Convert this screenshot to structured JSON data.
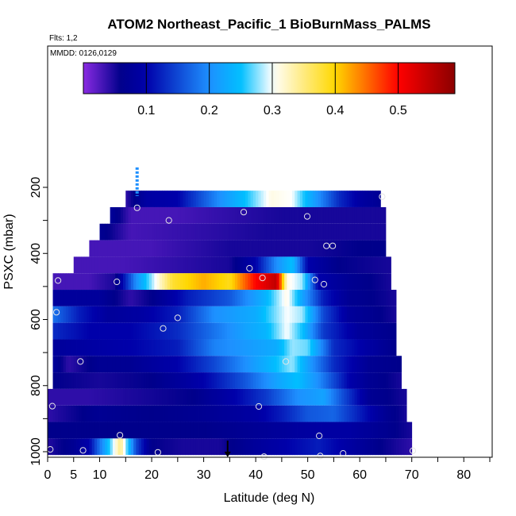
{
  "chart_data": {
    "type": "heatmap",
    "title": "ATOM2 Northeast_Pacific_1 BioBurnMass_PALMS",
    "flights_label": "Flts: 1,2",
    "dates_label": "MMDD: 0126,0129",
    "xlabel": "Latitude (deg N)",
    "ylabel": "PSXC (mbar)",
    "xlim": [
      0,
      85
    ],
    "ylim": [
      1000,
      100
    ],
    "x_ticks": [
      0,
      5,
      10,
      20,
      30,
      40,
      50,
      60,
      70,
      80
    ],
    "y_ticks": [
      200,
      400,
      600,
      800,
      1000
    ],
    "colorbar": {
      "min": 0.0,
      "max": 0.59,
      "ticks": [
        0.1,
        0.2,
        0.3,
        0.4,
        0.5
      ],
      "tick_labels": [
        "0.1",
        "0.2",
        "0.3",
        "0.4",
        "0.5"
      ],
      "colors": [
        "#8a2be2",
        "#00008b",
        "#1e90ff",
        "#00bfff",
        "#ffffff",
        "#ffd700",
        "#ff0000",
        "#8b0000"
      ]
    },
    "bands": [
      {
        "p_top": 210,
        "p_bot": 260,
        "lat_min": 15,
        "lat_max": 64,
        "values": [
          [
            15,
            0.04
          ],
          [
            19,
            0.09
          ],
          [
            25,
            0.1
          ],
          [
            33,
            0.2
          ],
          [
            38,
            0.25
          ],
          [
            43,
            0.31
          ],
          [
            47,
            0.3
          ],
          [
            51,
            0.22
          ],
          [
            56,
            0.13
          ],
          [
            60,
            0.09
          ],
          [
            64,
            0.07
          ]
        ]
      },
      {
        "p_top": 260,
        "p_bot": 310,
        "lat_min": 12,
        "lat_max": 65,
        "values": [
          [
            12,
            0.08
          ],
          [
            16,
            0.03
          ],
          [
            25,
            0.03
          ],
          [
            35,
            0.04
          ],
          [
            45,
            0.05
          ],
          [
            55,
            0.05
          ],
          [
            62,
            0.05
          ],
          [
            65,
            0.05
          ]
        ]
      },
      {
        "p_top": 310,
        "p_bot": 360,
        "lat_min": 10,
        "lat_max": 65,
        "values": [
          [
            10,
            0.07
          ],
          [
            16,
            0.03
          ],
          [
            30,
            0.04
          ],
          [
            42,
            0.05
          ],
          [
            55,
            0.05
          ],
          [
            65,
            0.05
          ]
        ]
      },
      {
        "p_top": 360,
        "p_bot": 410,
        "lat_min": 8,
        "lat_max": 65,
        "values": [
          [
            8,
            0.03
          ],
          [
            20,
            0.03
          ],
          [
            35,
            0.05
          ],
          [
            50,
            0.05
          ],
          [
            60,
            0.06
          ],
          [
            65,
            0.06
          ]
        ]
      },
      {
        "p_top": 410,
        "p_bot": 460,
        "lat_min": 5,
        "lat_max": 66,
        "values": [
          [
            5,
            0.03
          ],
          [
            15,
            0.03
          ],
          [
            25,
            0.04
          ],
          [
            35,
            0.05
          ],
          [
            40,
            0.1
          ],
          [
            44,
            0.2
          ],
          [
            47,
            0.25
          ],
          [
            50,
            0.1
          ],
          [
            56,
            0.06
          ],
          [
            66,
            0.05
          ]
        ]
      },
      {
        "p_top": 460,
        "p_bot": 510,
        "lat_min": 1,
        "lat_max": 66,
        "values": [
          [
            1,
            0.03
          ],
          [
            8,
            0.03
          ],
          [
            13,
            0.05
          ],
          [
            17,
            0.2
          ],
          [
            20,
            0.28
          ],
          [
            24,
            0.38
          ],
          [
            30,
            0.42
          ],
          [
            35,
            0.39
          ],
          [
            40,
            0.5
          ],
          [
            44,
            0.55
          ],
          [
            46,
            0.31
          ],
          [
            49,
            0.28
          ],
          [
            52,
            0.1
          ],
          [
            58,
            0.07
          ],
          [
            66,
            0.05
          ]
        ]
      },
      {
        "p_top": 510,
        "p_bot": 560,
        "lat_min": 1,
        "lat_max": 67,
        "values": [
          [
            1,
            0.08
          ],
          [
            10,
            0.08
          ],
          [
            16,
            0.04
          ],
          [
            20,
            0.06
          ],
          [
            27,
            0.12
          ],
          [
            35,
            0.16
          ],
          [
            42,
            0.24
          ],
          [
            46,
            0.31
          ],
          [
            49,
            0.22
          ],
          [
            53,
            0.12
          ],
          [
            58,
            0.07
          ],
          [
            67,
            0.05
          ]
        ]
      },
      {
        "p_top": 560,
        "p_bot": 610,
        "lat_min": 1,
        "lat_max": 67,
        "values": [
          [
            1,
            0.18
          ],
          [
            6,
            0.12
          ],
          [
            12,
            0.08
          ],
          [
            18,
            0.09
          ],
          [
            25,
            0.12
          ],
          [
            32,
            0.2
          ],
          [
            40,
            0.23
          ],
          [
            46,
            0.3
          ],
          [
            49,
            0.28
          ],
          [
            53,
            0.15
          ],
          [
            58,
            0.08
          ],
          [
            67,
            0.05
          ]
        ]
      },
      {
        "p_top": 610,
        "p_bot": 660,
        "lat_min": 1,
        "lat_max": 67,
        "values": [
          [
            1,
            0.13
          ],
          [
            8,
            0.1
          ],
          [
            16,
            0.1
          ],
          [
            25,
            0.13
          ],
          [
            32,
            0.18
          ],
          [
            38,
            0.22
          ],
          [
            42,
            0.24
          ],
          [
            46,
            0.3
          ],
          [
            49,
            0.25
          ],
          [
            53,
            0.14
          ],
          [
            60,
            0.08
          ],
          [
            67,
            0.06
          ]
        ]
      },
      {
        "p_top": 660,
        "p_bot": 710,
        "lat_min": 1,
        "lat_max": 67,
        "values": [
          [
            1,
            0.08
          ],
          [
            8,
            0.09
          ],
          [
            16,
            0.1
          ],
          [
            25,
            0.12
          ],
          [
            32,
            0.19
          ],
          [
            38,
            0.21
          ],
          [
            44,
            0.23
          ],
          [
            47,
            0.28
          ],
          [
            50,
            0.27
          ],
          [
            55,
            0.13
          ],
          [
            60,
            0.1
          ],
          [
            67,
            0.06
          ]
        ]
      },
      {
        "p_top": 710,
        "p_bot": 760,
        "lat_min": 1,
        "lat_max": 68,
        "values": [
          [
            1,
            0.08
          ],
          [
            4,
            0.04
          ],
          [
            10,
            0.07
          ],
          [
            16,
            0.07
          ],
          [
            25,
            0.1
          ],
          [
            32,
            0.15
          ],
          [
            38,
            0.2
          ],
          [
            44,
            0.25
          ],
          [
            47,
            0.28
          ],
          [
            51,
            0.2
          ],
          [
            55,
            0.13
          ],
          [
            62,
            0.07
          ],
          [
            68,
            0.06
          ]
        ]
      },
      {
        "p_top": 760,
        "p_bot": 810,
        "lat_min": 1,
        "lat_max": 68,
        "values": [
          [
            1,
            0.06
          ],
          [
            10,
            0.05
          ],
          [
            20,
            0.06
          ],
          [
            30,
            0.1
          ],
          [
            38,
            0.16
          ],
          [
            44,
            0.22
          ],
          [
            48,
            0.25
          ],
          [
            52,
            0.2
          ],
          [
            58,
            0.1
          ],
          [
            62,
            0.07
          ],
          [
            68,
            0.05
          ]
        ]
      },
      {
        "p_top": 810,
        "p_bot": 860,
        "lat_min": 0,
        "lat_max": 69,
        "values": [
          [
            0,
            0.04
          ],
          [
            8,
            0.04
          ],
          [
            18,
            0.05
          ],
          [
            28,
            0.06
          ],
          [
            36,
            0.1
          ],
          [
            42,
            0.14
          ],
          [
            48,
            0.2
          ],
          [
            53,
            0.22
          ],
          [
            57,
            0.15
          ],
          [
            62,
            0.07
          ],
          [
            69,
            0.05
          ]
        ]
      },
      {
        "p_top": 860,
        "p_bot": 910,
        "lat_min": 0,
        "lat_max": 69,
        "values": [
          [
            0,
            0.04
          ],
          [
            10,
            0.07
          ],
          [
            20,
            0.06
          ],
          [
            30,
            0.07
          ],
          [
            40,
            0.09
          ],
          [
            45,
            0.12
          ],
          [
            50,
            0.16
          ],
          [
            55,
            0.17
          ],
          [
            60,
            0.12
          ],
          [
            65,
            0.07
          ],
          [
            69,
            0.05
          ]
        ]
      },
      {
        "p_top": 910,
        "p_bot": 960,
        "lat_min": 0,
        "lat_max": 70,
        "values": [
          [
            0,
            0.06
          ],
          [
            10,
            0.06
          ],
          [
            20,
            0.06
          ],
          [
            30,
            0.06
          ],
          [
            38,
            0.07
          ],
          [
            45,
            0.08
          ],
          [
            52,
            0.09
          ],
          [
            58,
            0.09
          ],
          [
            64,
            0.07
          ],
          [
            70,
            0.05
          ]
        ]
      },
      {
        "p_top": 960,
        "p_bot": 1010,
        "lat_min": -1,
        "lat_max": 70,
        "values": [
          [
            -1,
            0.04
          ],
          [
            5,
            0.07
          ],
          [
            8,
            0.1
          ],
          [
            11,
            0.22
          ],
          [
            14,
            0.35
          ],
          [
            17,
            0.15
          ],
          [
            20,
            0.06
          ],
          [
            26,
            0.05
          ],
          [
            33,
            0.05
          ],
          [
            40,
            0.08
          ],
          [
            46,
            0.1
          ],
          [
            52,
            0.12
          ],
          [
            58,
            0.09
          ],
          [
            64,
            0.06
          ],
          [
            70,
            0.04
          ]
        ]
      }
    ],
    "sample_points": [
      {
        "lat": 17.2,
        "p": 262
      },
      {
        "lat": 23.3,
        "p": 300
      },
      {
        "lat": 37.7,
        "p": 275
      },
      {
        "lat": 49.9,
        "p": 288
      },
      {
        "lat": 64.3,
        "p": 228
      },
      {
        "lat": 53.6,
        "p": 377
      },
      {
        "lat": 54.8,
        "p": 377
      },
      {
        "lat": 38.8,
        "p": 445
      },
      {
        "lat": 41.3,
        "p": 474
      },
      {
        "lat": 51.4,
        "p": 480
      },
      {
        "lat": 53.1,
        "p": 493
      },
      {
        "lat": 2.0,
        "p": 482
      },
      {
        "lat": 13.3,
        "p": 486
      },
      {
        "lat": 1.7,
        "p": 578
      },
      {
        "lat": 25.0,
        "p": 595
      },
      {
        "lat": 22.2,
        "p": 627
      },
      {
        "lat": 6.3,
        "p": 727
      },
      {
        "lat": 45.8,
        "p": 727
      },
      {
        "lat": 0.9,
        "p": 862
      },
      {
        "lat": 40.6,
        "p": 863
      },
      {
        "lat": 13.9,
        "p": 950
      },
      {
        "lat": 52.2,
        "p": 952
      },
      {
        "lat": 0.5,
        "p": 993
      },
      {
        "lat": 6.8,
        "p": 996
      },
      {
        "lat": 21.2,
        "p": 1002
      },
      {
        "lat": 41.6,
        "p": 1015
      },
      {
        "lat": 52.4,
        "p": 1013
      },
      {
        "lat": 56.8,
        "p": 1005
      },
      {
        "lat": 70.2,
        "p": 997
      }
    ],
    "markers": [
      {
        "lat": 17.2,
        "p": 183,
        "color": "#1e90ff",
        "style": "dash"
      },
      {
        "lat": 34.6,
        "p": 1000,
        "color": "#000000",
        "style": "arrow"
      }
    ]
  }
}
